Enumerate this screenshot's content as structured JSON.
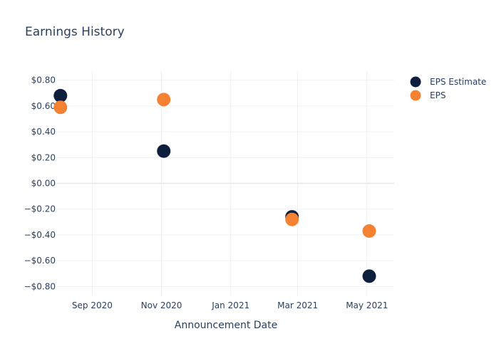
{
  "chart_data": {
    "type": "scatter",
    "title": "Earnings History",
    "xlabel": "Announcement Date",
    "ylabel": "",
    "x_ticks": [
      {
        "date": "2020-09-01",
        "label": "Sep 2020"
      },
      {
        "date": "2020-11-01",
        "label": "Nov 2020"
      },
      {
        "date": "2021-01-01",
        "label": "Jan 2021"
      },
      {
        "date": "2021-03-01",
        "label": "Mar 2021"
      },
      {
        "date": "2021-05-01",
        "label": "May 2021"
      }
    ],
    "xlim": [
      "2020-08-01",
      "2021-05-25"
    ],
    "ylim": [
      -0.87,
      0.87
    ],
    "y_ticks": [
      {
        "value": 0.8,
        "label": "$0.80"
      },
      {
        "value": 0.6,
        "label": "$0.60"
      },
      {
        "value": 0.4,
        "label": "$0.40"
      },
      {
        "value": 0.2,
        "label": "$0.20"
      },
      {
        "value": 0.0,
        "label": "$0.00"
      },
      {
        "value": -0.2,
        "label": "−$0.20"
      },
      {
        "value": -0.4,
        "label": "−$0.40"
      },
      {
        "value": -0.6,
        "label": "−$0.60"
      },
      {
        "value": -0.8,
        "label": "−$0.80"
      }
    ],
    "grid": true,
    "legend_position": "top-right",
    "series": [
      {
        "name": "EPS Estimate",
        "color": "#0d1f3c",
        "points": [
          {
            "x": "2020-08-04",
            "y": 0.68
          },
          {
            "x": "2020-11-03",
            "y": 0.25
          },
          {
            "x": "2021-02-24",
            "y": -0.26
          },
          {
            "x": "2021-05-03",
            "y": -0.72
          }
        ]
      },
      {
        "name": "EPS",
        "color": "#f58232",
        "points": [
          {
            "x": "2020-08-04",
            "y": 0.59
          },
          {
            "x": "2020-11-03",
            "y": 0.65
          },
          {
            "x": "2021-02-24",
            "y": -0.28
          },
          {
            "x": "2021-05-03",
            "y": -0.37
          }
        ]
      }
    ]
  }
}
